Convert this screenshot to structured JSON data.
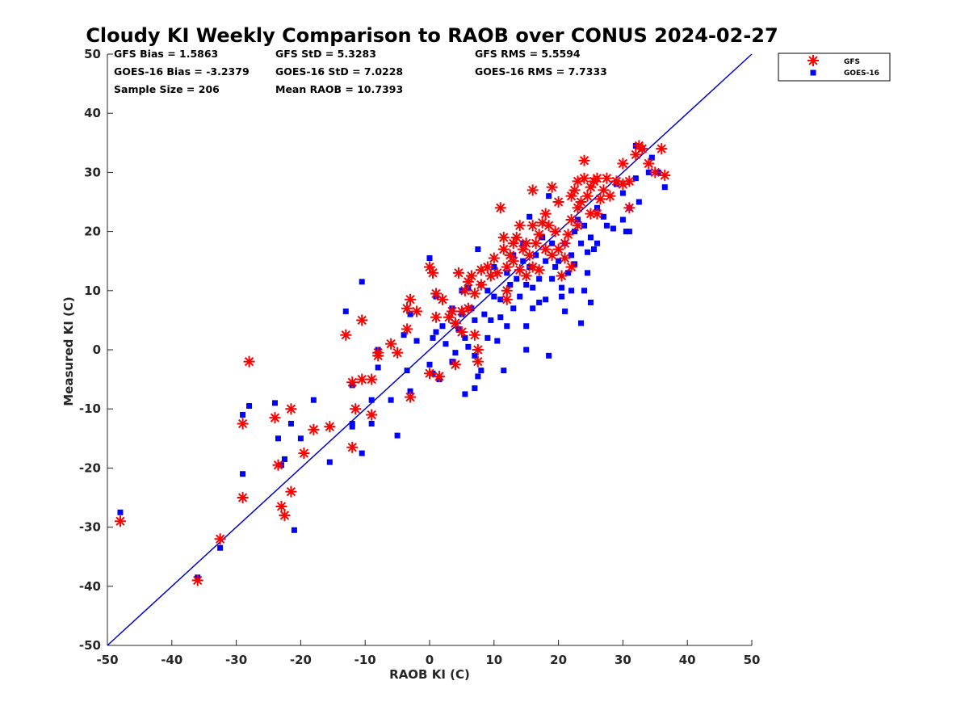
{
  "chart_data": {
    "type": "scatter",
    "title": "Cloudy KI Weekly Comparison to RAOB over CONUS 2024-02-27",
    "xlabel": "RAOB KI (C)",
    "ylabel": "Measured KI (C)",
    "xlim": [
      -50,
      50
    ],
    "ylim": [
      -50,
      50
    ],
    "xticks": [
      "-50",
      "-40",
      "-30",
      "-20",
      "-10",
      "0",
      "10",
      "20",
      "30",
      "40",
      "50"
    ],
    "yticks": [
      "50",
      "40",
      "30",
      "20",
      "10",
      "0",
      "-10",
      "-20",
      "-30",
      "-40",
      "-50"
    ],
    "grid": false,
    "legend_position": "top-right",
    "reference_line": {
      "from": [
        -50,
        -50
      ],
      "to": [
        50,
        50
      ],
      "color": "#0000cc"
    },
    "stats": {
      "gfs_bias": "GFS Bias = 1.5863",
      "goes_bias": "GOES-16 Bias = -3.2379",
      "sample_size": "Sample Size = 206",
      "gfs_std": "GFS StD = 5.3283",
      "goes_std": "GOES-16 StD = 7.0228",
      "mean_raob": "Mean RAOB = 10.7393",
      "gfs_rms": "GFS RMS = 5.5594",
      "goes_rms": "GOES-16 RMS = 7.7333"
    },
    "series": [
      {
        "name": "GFS",
        "marker": "asterisk",
        "color": "#ff0000",
        "points": [
          [
            -48,
            -29
          ],
          [
            -36,
            -39
          ],
          [
            -32.5,
            -32
          ],
          [
            -29,
            -25
          ],
          [
            -29,
            -12.5
          ],
          [
            -28,
            -2
          ],
          [
            -24,
            -11.5
          ],
          [
            -23.5,
            -19.5
          ],
          [
            -23,
            -26.5
          ],
          [
            -22.5,
            -28
          ],
          [
            -21.5,
            -24
          ],
          [
            -21.5,
            -10
          ],
          [
            -19.5,
            -17.5
          ],
          [
            -18,
            -13.5
          ],
          [
            -15.5,
            -13
          ],
          [
            -13,
            2.5
          ],
          [
            -12,
            -16.5
          ],
          [
            -12,
            -5.5
          ],
          [
            -11.5,
            -10
          ],
          [
            -10.5,
            5
          ],
          [
            -10.5,
            -5
          ],
          [
            -9,
            -5
          ],
          [
            -9,
            -11
          ],
          [
            -8,
            -1
          ],
          [
            -8,
            -0.5
          ],
          [
            -6,
            1
          ],
          [
            -5,
            -0.5
          ],
          [
            -3.5,
            3.5
          ],
          [
            -3.5,
            7
          ],
          [
            -3,
            8.5
          ],
          [
            -3,
            -8
          ],
          [
            -2,
            6.5
          ],
          [
            0,
            14
          ],
          [
            0,
            -4
          ],
          [
            0.5,
            13
          ],
          [
            1,
            5.5
          ],
          [
            1,
            9.5
          ],
          [
            1.5,
            -4.5
          ],
          [
            2,
            8.5
          ],
          [
            3,
            5.5
          ],
          [
            3.5,
            6.5
          ],
          [
            4,
            -2.5
          ],
          [
            4,
            4.5
          ],
          [
            4.5,
            13
          ],
          [
            5,
            6.5
          ],
          [
            5,
            3
          ],
          [
            5.5,
            10
          ],
          [
            6,
            11.5
          ],
          [
            6,
            7
          ],
          [
            6.5,
            12.5
          ],
          [
            7,
            9.5
          ],
          [
            7,
            2.5
          ],
          [
            7.5,
            0
          ],
          [
            7.5,
            -2
          ],
          [
            8,
            11
          ],
          [
            8,
            13.5
          ],
          [
            9,
            14
          ],
          [
            9.5,
            12.5
          ],
          [
            10,
            15.5
          ],
          [
            10.5,
            13
          ],
          [
            11,
            24
          ],
          [
            11.5,
            17
          ],
          [
            11.5,
            19
          ],
          [
            12,
            14
          ],
          [
            12,
            10
          ],
          [
            12,
            8.5
          ],
          [
            12.5,
            16
          ],
          [
            13,
            15
          ],
          [
            13,
            18
          ],
          [
            13.5,
            19
          ],
          [
            14,
            21
          ],
          [
            14,
            13.5
          ],
          [
            14.5,
            17
          ],
          [
            15,
            18
          ],
          [
            15,
            12.5
          ],
          [
            15.5,
            16
          ],
          [
            16,
            21
          ],
          [
            16,
            14
          ],
          [
            16,
            27
          ],
          [
            16.5,
            18
          ],
          [
            17,
            19.5
          ],
          [
            17,
            13.5
          ],
          [
            17.5,
            21.5
          ],
          [
            18,
            17
          ],
          [
            18,
            23
          ],
          [
            18.5,
            21
          ],
          [
            19,
            27.5
          ],
          [
            19,
            16
          ],
          [
            19.5,
            20
          ],
          [
            20,
            25
          ],
          [
            20,
            17
          ],
          [
            20.5,
            12.5
          ],
          [
            21,
            15.5
          ],
          [
            21,
            18
          ],
          [
            21.5,
            19.5
          ],
          [
            22,
            22
          ],
          [
            22,
            26
          ],
          [
            22,
            14
          ],
          [
            22.5,
            27
          ],
          [
            23,
            28.5
          ],
          [
            23,
            24
          ],
          [
            23,
            21
          ],
          [
            23.5,
            25
          ],
          [
            24,
            32
          ],
          [
            24,
            29
          ],
          [
            24.5,
            26
          ],
          [
            25,
            27.5
          ],
          [
            25,
            23
          ],
          [
            25.5,
            28.5
          ],
          [
            26,
            29
          ],
          [
            26,
            23
          ],
          [
            26.5,
            25.5
          ],
          [
            27,
            27
          ],
          [
            27.5,
            29
          ],
          [
            28,
            26
          ],
          [
            29,
            28.5
          ],
          [
            30,
            28
          ],
          [
            30,
            31.5
          ],
          [
            31,
            28.5
          ],
          [
            31,
            24
          ],
          [
            32,
            33
          ],
          [
            32.5,
            34.5
          ],
          [
            33,
            34
          ],
          [
            34,
            31.5
          ],
          [
            35,
            30
          ],
          [
            36,
            34
          ],
          [
            36.5,
            29.5
          ]
        ]
      },
      {
        "name": "GOES-16",
        "marker": "square",
        "color": "#0000ff",
        "points": [
          [
            -48,
            -27.5
          ],
          [
            -36,
            -38.5
          ],
          [
            -32.5,
            -33.5
          ],
          [
            -29,
            -21
          ],
          [
            -29,
            -11
          ],
          [
            -28,
            -9.5
          ],
          [
            -24,
            -9
          ],
          [
            -23.5,
            -15
          ],
          [
            -23,
            -19.5
          ],
          [
            -22.5,
            -18.5
          ],
          [
            -21.5,
            -12.5
          ],
          [
            -21,
            -30.5
          ],
          [
            -20,
            -15
          ],
          [
            -18,
            -8.5
          ],
          [
            -15.5,
            -19
          ],
          [
            -13,
            6.5
          ],
          [
            -12,
            -12.5
          ],
          [
            -12,
            -13
          ],
          [
            -12,
            -6
          ],
          [
            -10.5,
            11.5
          ],
          [
            -10.5,
            -17.5
          ],
          [
            -9,
            -8.5
          ],
          [
            -9,
            -12.5
          ],
          [
            -8,
            0
          ],
          [
            -8,
            -3
          ],
          [
            -6,
            -8.5
          ],
          [
            -5,
            -14.5
          ],
          [
            -4,
            2.5
          ],
          [
            -3.5,
            -3.5
          ],
          [
            -3,
            6
          ],
          [
            -3,
            -7
          ],
          [
            -2,
            1.5
          ],
          [
            0,
            15.5
          ],
          [
            0,
            -2.5
          ],
          [
            0.5,
            2
          ],
          [
            0.5,
            -4
          ],
          [
            1,
            9
          ],
          [
            1,
            3
          ],
          [
            1.5,
            -5
          ],
          [
            2,
            4
          ],
          [
            2.5,
            1
          ],
          [
            3.5,
            7
          ],
          [
            3.5,
            -2
          ],
          [
            4,
            -0.5
          ],
          [
            4.5,
            3.5
          ],
          [
            5,
            10
          ],
          [
            5,
            6
          ],
          [
            5.5,
            -7.5
          ],
          [
            5.5,
            2
          ],
          [
            6,
            10.5
          ],
          [
            6,
            0.5
          ],
          [
            6.5,
            7
          ],
          [
            7,
            5
          ],
          [
            7,
            -6.5
          ],
          [
            7,
            -1
          ],
          [
            7.5,
            17
          ],
          [
            7.5,
            -4.5
          ],
          [
            8,
            11
          ],
          [
            8,
            -3.5
          ],
          [
            8.5,
            6
          ],
          [
            9,
            2
          ],
          [
            9,
            10
          ],
          [
            9.5,
            5
          ],
          [
            10,
            14
          ],
          [
            10,
            9
          ],
          [
            10.5,
            1.5
          ],
          [
            11,
            8.5
          ],
          [
            11,
            5.5
          ],
          [
            11.5,
            -3.5
          ],
          [
            12,
            4
          ],
          [
            12,
            13
          ],
          [
            12.5,
            11
          ],
          [
            13,
            7
          ],
          [
            13,
            16
          ],
          [
            13.5,
            12
          ],
          [
            14,
            9
          ],
          [
            14.5,
            15
          ],
          [
            14.5,
            18
          ],
          [
            15,
            0
          ],
          [
            15,
            11
          ],
          [
            15,
            4
          ],
          [
            15.5,
            22.5
          ],
          [
            15.5,
            14
          ],
          [
            16,
            10.5
          ],
          [
            16,
            7
          ],
          [
            16.5,
            16
          ],
          [
            17,
            12
          ],
          [
            17,
            8
          ],
          [
            17.5,
            19
          ],
          [
            18,
            15
          ],
          [
            18,
            8.5
          ],
          [
            18.5,
            -1
          ],
          [
            18.5,
            26
          ],
          [
            19,
            18
          ],
          [
            19,
            12
          ],
          [
            19.5,
            14
          ],
          [
            20,
            15
          ],
          [
            20.5,
            10.5
          ],
          [
            20.5,
            9
          ],
          [
            21,
            6.5
          ],
          [
            21,
            18
          ],
          [
            21.5,
            13
          ],
          [
            22,
            10
          ],
          [
            22,
            16
          ],
          [
            22.5,
            20
          ],
          [
            22.5,
            14.5
          ],
          [
            23,
            22
          ],
          [
            23.5,
            4.5
          ],
          [
            23.5,
            18
          ],
          [
            24,
            10
          ],
          [
            24,
            21
          ],
          [
            24.5,
            13
          ],
          [
            24.5,
            16.5
          ],
          [
            25,
            8
          ],
          [
            25,
            19
          ],
          [
            25.5,
            17
          ],
          [
            26,
            24
          ],
          [
            26,
            18
          ],
          [
            27,
            22.5
          ],
          [
            27.5,
            21
          ],
          [
            28.5,
            20.5
          ],
          [
            29,
            28
          ],
          [
            30,
            22
          ],
          [
            30,
            26.5
          ],
          [
            30.5,
            20
          ],
          [
            31,
            20
          ],
          [
            31,
            24
          ],
          [
            32,
            34.5
          ],
          [
            32,
            29
          ],
          [
            32.5,
            25
          ],
          [
            33,
            34
          ],
          [
            34,
            30
          ],
          [
            34.5,
            32.5
          ],
          [
            35.5,
            30
          ],
          [
            36.5,
            27.5
          ]
        ]
      }
    ]
  }
}
